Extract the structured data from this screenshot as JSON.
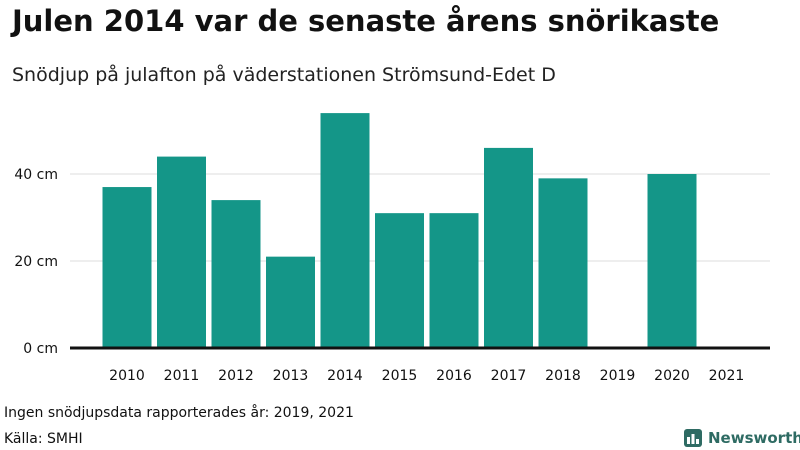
{
  "title": "Julen 2014 var de senaste årens snörikaste",
  "subtitle": "Snödjup på julafton på väderstationen Strömsund-Edet D",
  "footnote": "Ingen snödjupsdata rapporterades år: 2019, 2021",
  "source": "Källa: SMHI",
  "brand": "Newsworthy",
  "colors": {
    "bar": "#149688",
    "grid": "#dddddd",
    "axis": "#111111",
    "brand": "#2e6b63"
  },
  "chart_data": {
    "type": "bar",
    "categories": [
      "2010",
      "2011",
      "2012",
      "2013",
      "2014",
      "2015",
      "2016",
      "2017",
      "2018",
      "2019",
      "2020",
      "2021"
    ],
    "values": [
      37,
      44,
      34,
      21,
      54,
      31,
      31,
      46,
      39,
      null,
      40,
      null
    ],
    "yticks": [
      0,
      20,
      40
    ],
    "ytick_labels": [
      "0 cm",
      "20 cm",
      "40 cm"
    ],
    "ylim": [
      0,
      60
    ],
    "grid": true
  }
}
